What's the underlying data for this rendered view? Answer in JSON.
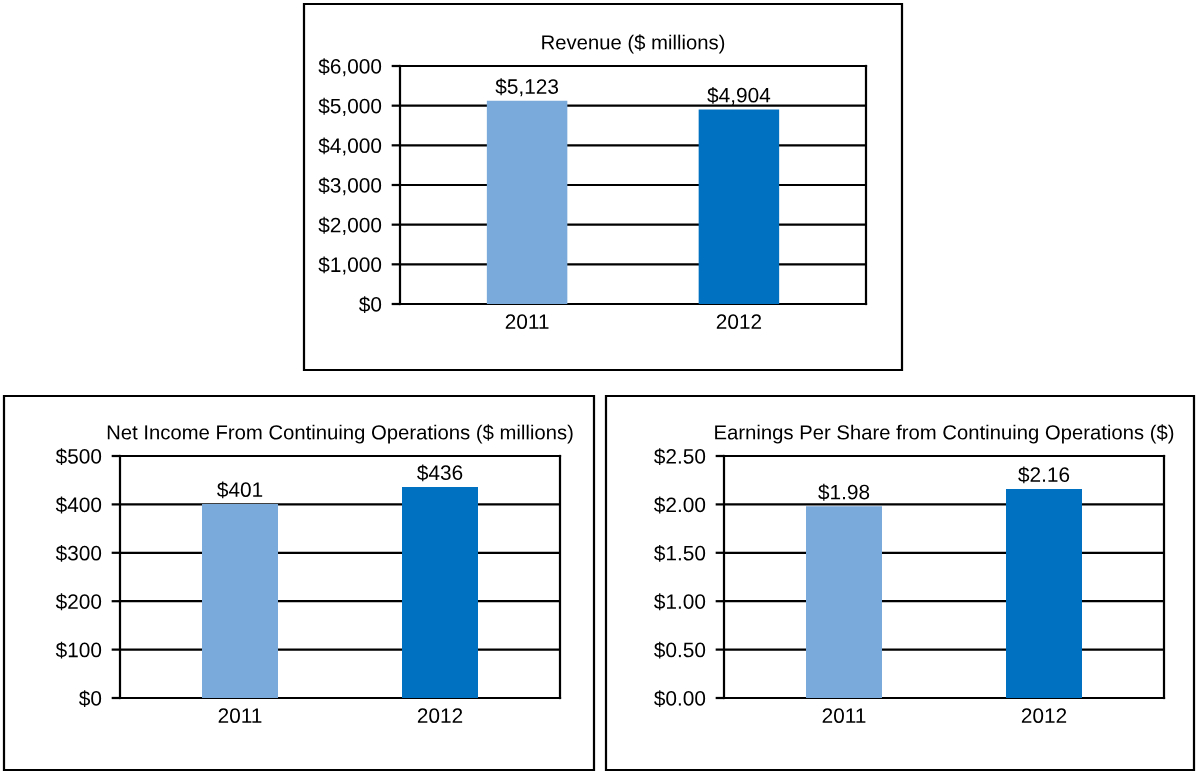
{
  "chart_data": [
    {
      "type": "bar",
      "title": "Revenue ($ millions)",
      "categories": [
        "2011",
        "2012"
      ],
      "values": [
        5123,
        4904
      ],
      "colors": [
        "#7aaadc",
        "#0070c0"
      ],
      "value_labels": [
        "$5,123",
        "$4,904"
      ],
      "ylim": [
        0,
        6000
      ],
      "yticks": [
        {
          "value": 0,
          "label": "$0"
        },
        {
          "value": 1000,
          "label": "$1,000"
        },
        {
          "value": 2000,
          "label": "$2,000"
        },
        {
          "value": 3000,
          "label": "$3,000"
        },
        {
          "value": 4000,
          "label": "$4,000"
        },
        {
          "value": 5000,
          "label": "$5,000"
        },
        {
          "value": 6000,
          "label": "$6,000"
        }
      ],
      "grid": "y"
    },
    {
      "type": "bar",
      "title": "Net Income From Continuing Operations ($ millions)",
      "categories": [
        "2011",
        "2012"
      ],
      "values": [
        401,
        436
      ],
      "colors": [
        "#7aaadc",
        "#0070c0"
      ],
      "value_labels": [
        "$401",
        "$436"
      ],
      "ylim": [
        0,
        500
      ],
      "yticks": [
        {
          "value": 0,
          "label": "$0"
        },
        {
          "value": 100,
          "label": "$100"
        },
        {
          "value": 200,
          "label": "$200"
        },
        {
          "value": 300,
          "label": "$300"
        },
        {
          "value": 400,
          "label": "$400"
        },
        {
          "value": 500,
          "label": "$500"
        }
      ],
      "grid": "y"
    },
    {
      "type": "bar",
      "title": "Earnings Per Share from Continuing Operations ($)",
      "categories": [
        "2011",
        "2012"
      ],
      "values": [
        1.98,
        2.16
      ],
      "colors": [
        "#7aaadc",
        "#0070c0"
      ],
      "value_labels": [
        "$1.98",
        "$2.16"
      ],
      "ylim": [
        0,
        2.5
      ],
      "yticks": [
        {
          "value": 0,
          "label": "$0.00"
        },
        {
          "value": 0.5,
          "label": "$0.50"
        },
        {
          "value": 1.0,
          "label": "$1.00"
        },
        {
          "value": 1.5,
          "label": "$1.50"
        },
        {
          "value": 2.0,
          "label": "$2.00"
        },
        {
          "value": 2.5,
          "label": "$2.50"
        }
      ],
      "grid": "y"
    }
  ]
}
